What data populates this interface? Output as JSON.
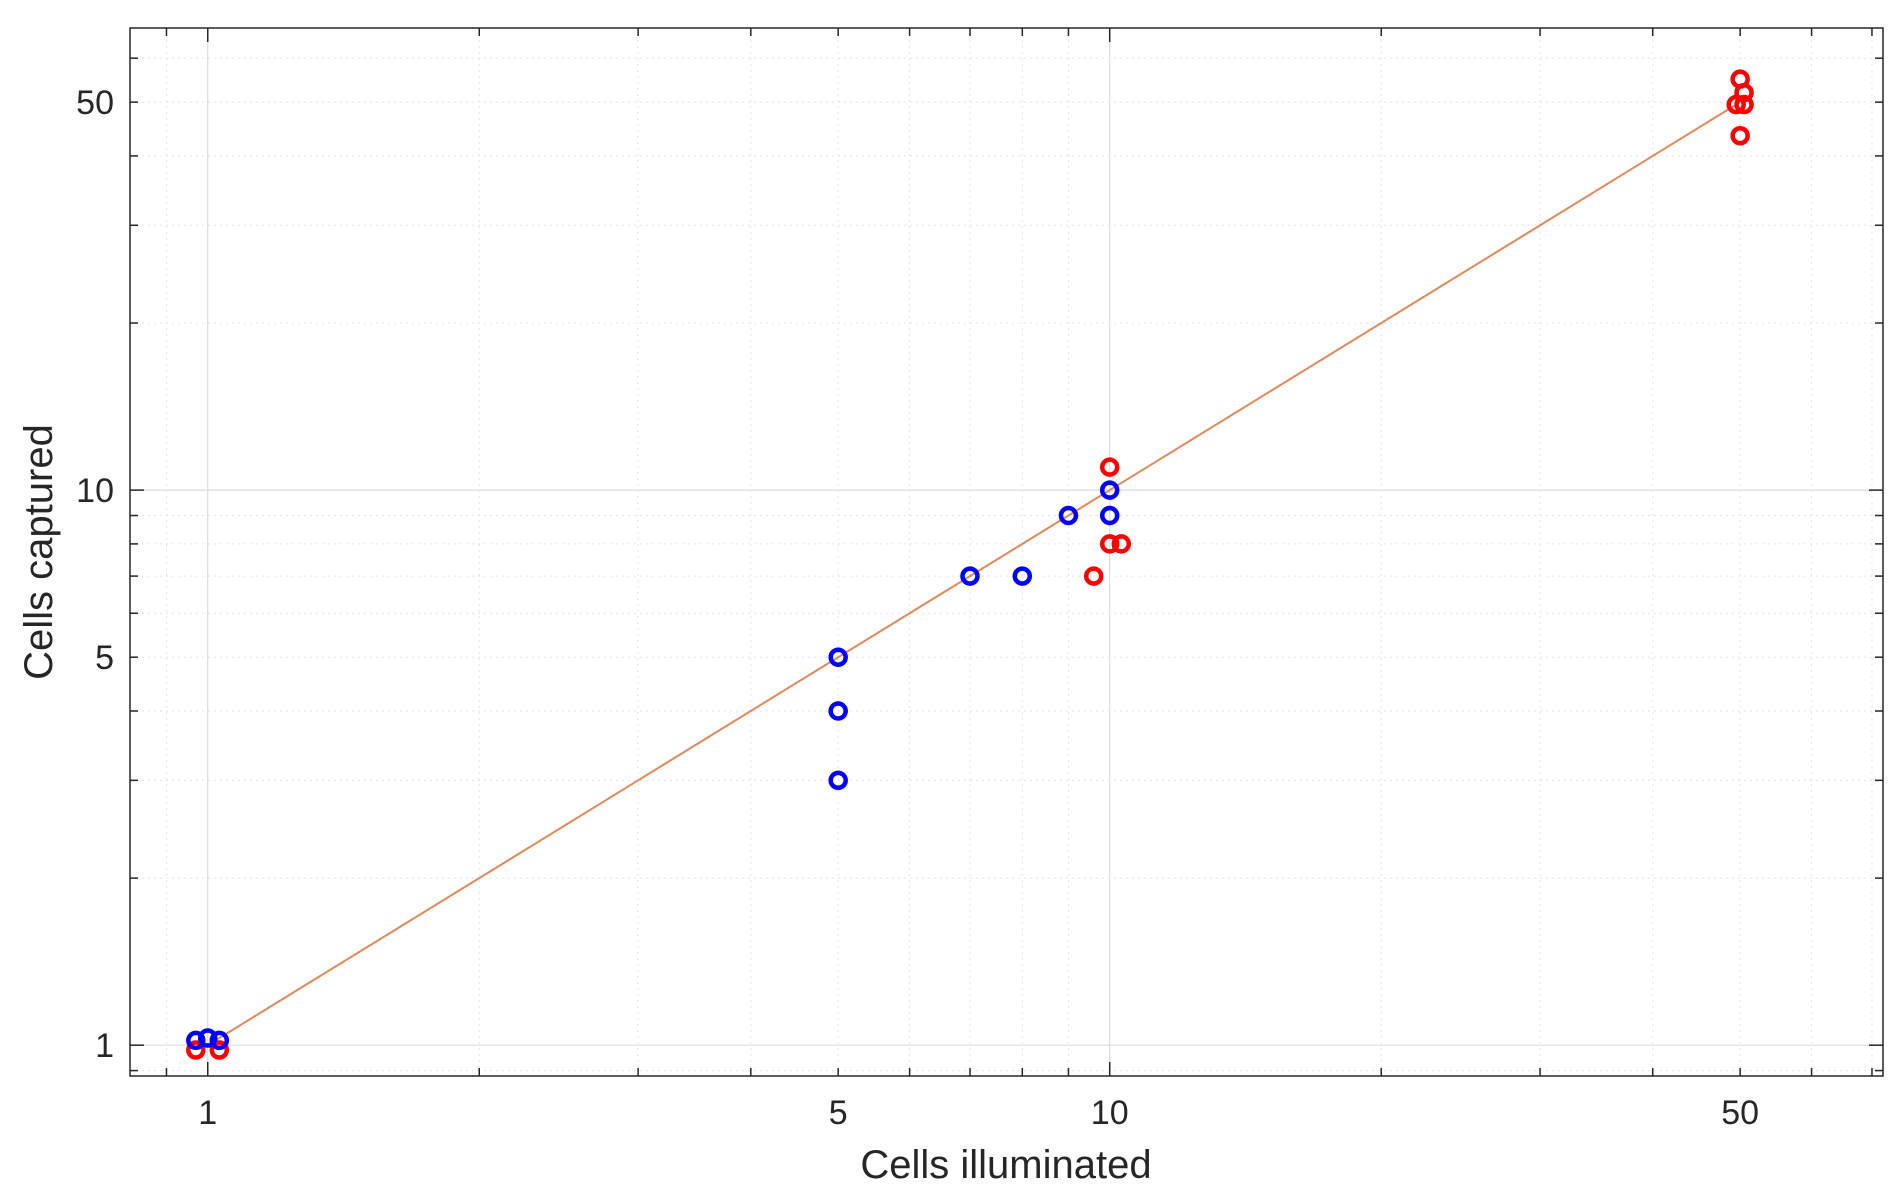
{
  "chart_data": {
    "type": "scatter",
    "xlabel": "Cells illuminated",
    "ylabel": "Cells captured",
    "xscale": "log",
    "yscale": "log",
    "xlim": [
      0.82,
      72
    ],
    "ylim": [
      0.88,
      68
    ],
    "grid": true,
    "x_ticks": [
      1,
      5,
      10,
      50
    ],
    "y_ticks": [
      1,
      5,
      10,
      50
    ],
    "fit_line": {
      "color": "#e0895a",
      "x": [
        1,
        50
      ],
      "y": [
        1,
        50
      ]
    },
    "series": [
      {
        "color": "#ff0000",
        "points": [
          [
            0.97,
            0.98
          ],
          [
            1.03,
            0.98
          ],
          [
            9.6,
            7
          ],
          [
            10,
            8
          ],
          [
            10.3,
            8
          ],
          [
            10,
            11
          ],
          [
            49.5,
            49.5
          ],
          [
            50,
            55
          ],
          [
            50.5,
            52
          ],
          [
            50.5,
            49.5
          ],
          [
            50,
            43.5
          ]
        ]
      },
      {
        "color": "#0000ff",
        "points": [
          [
            0.97,
            1.02
          ],
          [
            1,
            1.03
          ],
          [
            1.03,
            1.02
          ],
          [
            5,
            5
          ],
          [
            5,
            4
          ],
          [
            5,
            3
          ],
          [
            7,
            7
          ],
          [
            8,
            7
          ],
          [
            9,
            9
          ],
          [
            10,
            10
          ],
          [
            10,
            9
          ]
        ]
      }
    ]
  }
}
